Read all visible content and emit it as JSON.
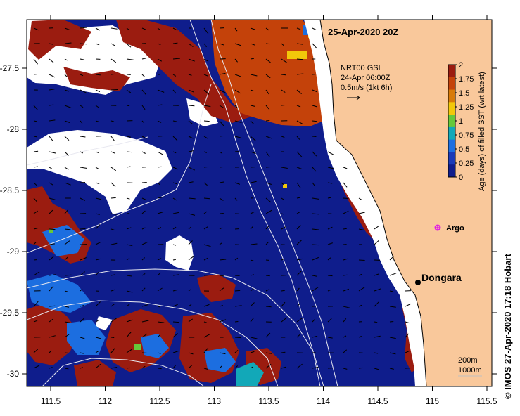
{
  "map": {
    "title": "25-Apr-2020 20Z",
    "current_label_line1": "NRT00 GSL",
    "current_label_line2": "24-Apr 06:00Z",
    "current_label_line3": "0.5m/s (1kt 6h)",
    "argo_label": "Argo",
    "town_label": "Dongara",
    "contour_label_1": "200m",
    "contour_label_2": "1000m",
    "credit": "© IMOS 27-Apr-2020 17:18 Hobart",
    "land_color": "#f9c89b",
    "argo_color": "#e020e0"
  },
  "axes": {
    "x_ticks": [
      "111.5",
      "112",
      "112.5",
      "113",
      "113.5",
      "114",
      "114.5",
      "115",
      "115.5"
    ],
    "y_ticks": [
      "-27.5",
      "-28",
      "-28.5",
      "-29",
      "-29.5",
      "-30"
    ]
  },
  "colorbar": {
    "title": "Age (days) of filled SST (wrt latest)",
    "ticks": [
      "2",
      "1.75",
      "1.5",
      "1.25",
      "1",
      "0.75",
      "0.5",
      "0.25",
      "0"
    ],
    "colors": [
      "#9b1c10",
      "#c4420a",
      "#d87a08",
      "#f2c80a",
      "#66c83a",
      "#12a8b8",
      "#1c6ee0",
      "#1a3ab8",
      "#0f1d8c"
    ]
  }
}
